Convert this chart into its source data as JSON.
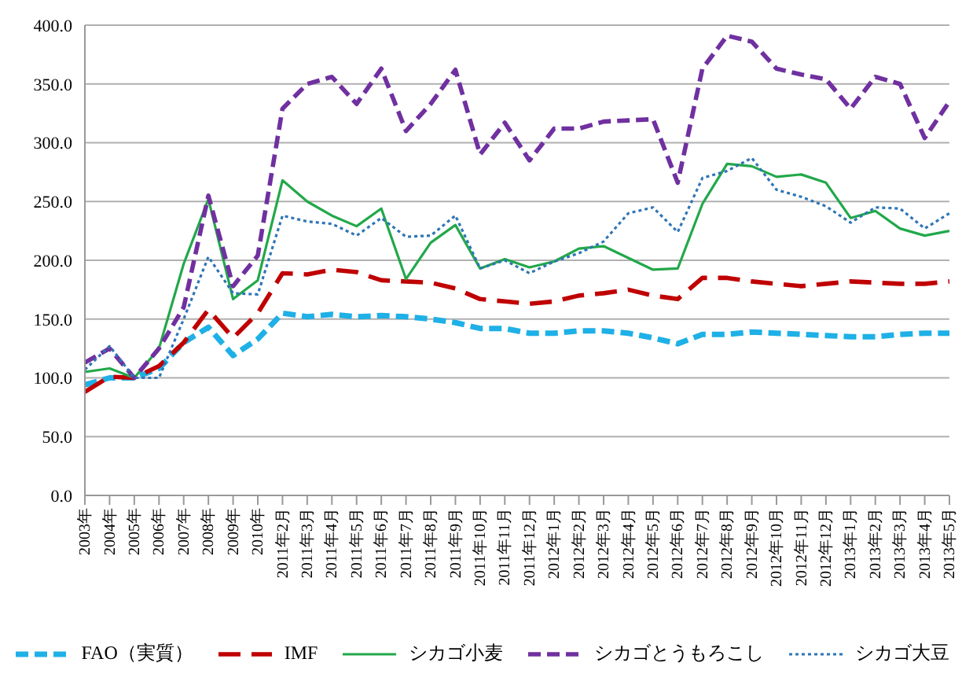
{
  "chart_data": {
    "type": "line",
    "categories": [
      "2003年",
      "2004年",
      "2005年",
      "2006年",
      "2007年",
      "2008年",
      "2009年",
      "2010年",
      "2011年2月",
      "2011年3月",
      "2011年4月",
      "2011年5月",
      "2011年6月",
      "2011年7月",
      "2011年8月",
      "2011年9月",
      "2011年10月",
      "2011年11月",
      "2011年12月",
      "2012年1月",
      "2012年2月",
      "2012年3月",
      "2012年4月",
      "2012年5月",
      "2012年6月",
      "2012年7月",
      "2012年8月",
      "2012年9月",
      "2012年10月",
      "2012年11月",
      "2012年12月",
      "2013年1月",
      "2013年2月",
      "2013年3月",
      "2013年4月",
      "2013年5月"
    ],
    "series": [
      {
        "name": "FAO（実質）",
        "color": "#1eb0e6",
        "line_style": "dashed",
        "values": [
          94,
          100,
          100,
          108,
          130,
          143,
          119,
          133,
          155,
          152,
          154,
          152,
          153,
          152,
          150,
          147,
          142,
          142,
          138,
          138,
          140,
          140,
          138,
          134,
          129,
          137,
          137,
          139,
          138,
          137,
          136,
          135,
          135,
          137,
          138,
          138
        ]
      },
      {
        "name": "IMF",
        "color": "#c00000",
        "line_style": "dashed",
        "values": [
          88,
          101,
          100,
          110,
          130,
          158,
          134,
          155,
          189,
          188,
          192,
          190,
          183,
          182,
          181,
          176,
          167,
          165,
          163,
          165,
          170,
          172,
          175,
          170,
          167,
          185,
          185,
          182,
          180,
          178,
          180,
          182,
          181,
          180,
          180,
          182
        ]
      },
      {
        "name": "シカゴ小麦",
        "color": "#22a84a",
        "line_style": "solid",
        "values": [
          105,
          108,
          100,
          125,
          197,
          252,
          167,
          183,
          268,
          250,
          238,
          229,
          244,
          184,
          215,
          230,
          193,
          201,
          194,
          199,
          210,
          212,
          202,
          192,
          193,
          248,
          282,
          280,
          271,
          273,
          266,
          236,
          242,
          227,
          221,
          225
        ]
      },
      {
        "name": "シカゴとうもろこし",
        "color": "#7030a0",
        "line_style": "dashed",
        "values": [
          113,
          125,
          100,
          125,
          160,
          255,
          178,
          204,
          329,
          350,
          356,
          333,
          363,
          310,
          333,
          362,
          290,
          317,
          285,
          312,
          312,
          318,
          319,
          320,
          266,
          363,
          391,
          386,
          363,
          358,
          354,
          329,
          356,
          350,
          304,
          335
        ]
      },
      {
        "name": "シカゴ大豆",
        "color": "#2e75b6",
        "line_style": "dotted",
        "values": [
          107,
          127,
          100,
          100,
          150,
          203,
          172,
          171,
          238,
          233,
          231,
          221,
          236,
          220,
          221,
          238,
          193,
          200,
          189,
          199,
          206,
          216,
          240,
          245,
          224,
          270,
          276,
          287,
          260,
          254,
          246,
          232,
          245,
          244,
          227,
          240
        ]
      }
    ],
    "ylim": [
      0,
      400
    ],
    "yticks": [
      {
        "value": 0,
        "label": "0.0"
      },
      {
        "value": 50,
        "label": "50.0"
      },
      {
        "value": 100,
        "label": "100.0"
      },
      {
        "value": 150,
        "label": "150.0"
      },
      {
        "value": 200,
        "label": "200.0"
      },
      {
        "value": 250,
        "label": "250.0"
      },
      {
        "value": 300,
        "label": "300.0"
      },
      {
        "value": 350,
        "label": "350.0"
      },
      {
        "value": 400,
        "label": "400.0"
      }
    ],
    "grid": "y",
    "legend": "bottom",
    "marker": "none"
  }
}
